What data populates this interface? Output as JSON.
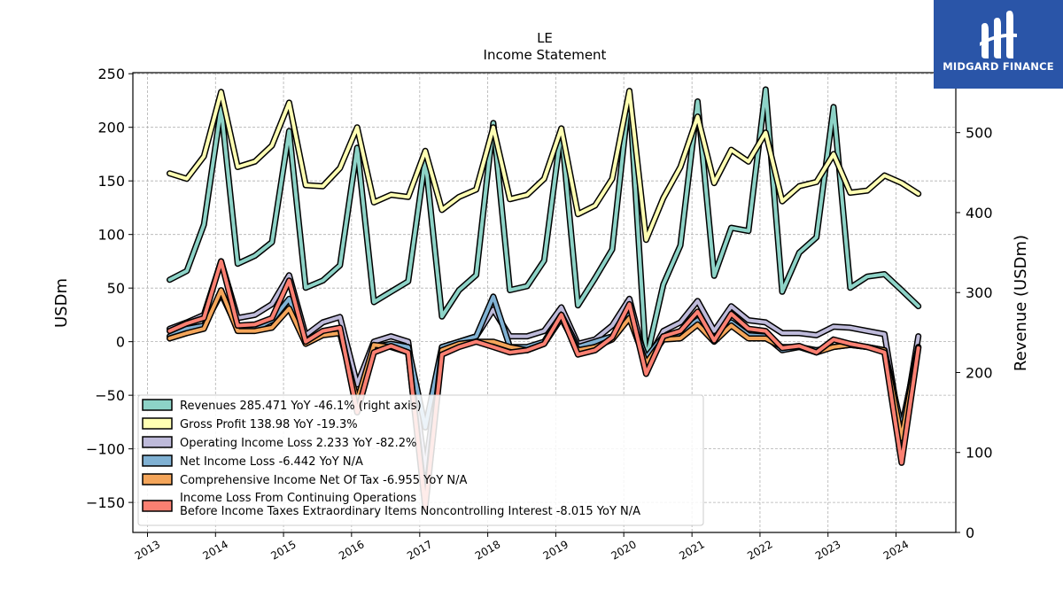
{
  "brand": {
    "name": "MIDGARD FINANCE",
    "bg": "#2a55a8"
  },
  "chart_data": {
    "type": "line",
    "title": "LE",
    "subtitle": "Income Statement",
    "ylabel": "USDm",
    "ylabel_right": "Revenue (USDm)",
    "ylim": [
      -178,
      251
    ],
    "ylim_right": [
      0,
      575
    ],
    "yticks": [
      -150,
      -100,
      -50,
      0,
      50,
      100,
      150,
      200,
      250
    ],
    "yticks_right": [
      0,
      100,
      200,
      300,
      400,
      500
    ],
    "ytick_labels": [
      "−150",
      "−100",
      "−50",
      "0",
      "50",
      "100",
      "150",
      "200",
      "250"
    ],
    "xticks": [
      "2013",
      "2014",
      "2015",
      "2016",
      "2017",
      "2018",
      "2019",
      "2020",
      "2021",
      "2022",
      "2023",
      "2024"
    ],
    "x": [
      "2013-04-30",
      "2013-07-31",
      "2013-10-31",
      "2014-01-31",
      "2014-04-30",
      "2014-07-31",
      "2014-10-31",
      "2015-01-31",
      "2015-04-30",
      "2015-07-31",
      "2015-10-31",
      "2016-01-31",
      "2016-04-30",
      "2016-07-31",
      "2016-10-31",
      "2017-01-31",
      "2017-04-30",
      "2017-07-31",
      "2017-10-31",
      "2018-01-31",
      "2018-04-30",
      "2018-07-31",
      "2018-10-31",
      "2019-01-31",
      "2019-04-30",
      "2019-07-31",
      "2019-10-31",
      "2020-01-31",
      "2020-04-30",
      "2020-07-31",
      "2020-10-31",
      "2021-01-31",
      "2021-04-30",
      "2021-07-31",
      "2021-10-31",
      "2022-01-31",
      "2022-04-30",
      "2022-07-31",
      "2022-10-31",
      "2023-01-31",
      "2023-04-30",
      "2023-07-31",
      "2023-10-31",
      "2024-01-31",
      "2024-04-30"
    ],
    "grid": true,
    "legend_position": "bottom-left",
    "series": [
      {
        "name": "Revenues  285.471 YoY -46.1% (right axis)",
        "color": "#8dd3c7",
        "axis": "right",
        "values": [
          316,
          327,
          385,
          531,
          336,
          346,
          363,
          502,
          306,
          315,
          334,
          481,
          288,
          301,
          314,
          467,
          270,
          303,
          322,
          512,
          303,
          308,
          340,
          504,
          284,
          318,
          354,
          549,
          215,
          310,
          359,
          539,
          321,
          381,
          377,
          554,
          301,
          350,
          369,
          532,
          306,
          320,
          323,
          303,
          283
        ]
      },
      {
        "name": "Gross Profit  138.98 YoY -19.3%",
        "color": "#ffffb3",
        "axis": "left",
        "values": [
          157,
          152,
          173,
          233,
          163,
          168,
          183,
          223,
          146,
          145,
          162,
          200,
          130,
          137,
          135,
          178,
          123,
          135,
          142,
          200,
          133,
          137,
          152,
          199,
          119,
          127,
          152,
          234,
          95,
          134,
          163,
          210,
          148,
          179,
          168,
          195,
          131,
          145,
          149,
          175,
          139,
          141,
          155,
          148,
          138
        ]
      },
      {
        "name": "Operating Income Loss  2.233 YoY -82.2%",
        "color": "#bebada",
        "axis": "left",
        "values": [
          12,
          18,
          25,
          75,
          22,
          25,
          35,
          62,
          6,
          18,
          23,
          -40,
          0,
          5,
          0,
          -120,
          -5,
          0,
          5,
          30,
          5,
          5,
          10,
          32,
          -2,
          2,
          15,
          40,
          -20,
          10,
          18,
          38,
          10,
          33,
          20,
          18,
          8,
          8,
          6,
          14,
          13,
          10,
          7,
          -90,
          5
        ]
      },
      {
        "name": "Net Income Loss  -6.442 YoY N/A",
        "color": "#80b1d3",
        "axis": "left",
        "values": [
          5,
          12,
          15,
          45,
          12,
          12,
          20,
          40,
          0,
          8,
          12,
          -60,
          -5,
          -2,
          -5,
          -80,
          -5,
          0,
          5,
          42,
          -5,
          -5,
          0,
          25,
          -5,
          0,
          5,
          25,
          -15,
          5,
          8,
          20,
          3,
          18,
          6,
          5,
          -8,
          -5,
          -8,
          -5,
          -3,
          -5,
          -8,
          -80,
          -5
        ]
      },
      {
        "name": "Comprehensive Income Net Of Tax  -6.955 YoY N/A",
        "color": "#f4a55a",
        "axis": "left",
        "values": [
          3,
          8,
          12,
          48,
          10,
          10,
          13,
          31,
          -2,
          6,
          8,
          -55,
          -3,
          -5,
          -10,
          -150,
          -8,
          -2,
          0,
          0,
          -5,
          -8,
          -2,
          22,
          -8,
          -5,
          2,
          22,
          -20,
          2,
          3,
          16,
          0,
          15,
          3,
          3,
          -5,
          -5,
          -10,
          -5,
          -3,
          -5,
          -8,
          -90,
          -5
        ]
      },
      {
        "name": "Income Loss From Continuing Operations\nBefore Income Taxes Extraordinary Items Noncontrolling Interest  -8.015 YoY N/A",
        "color": "#fb8072",
        "axis": "left",
        "values": [
          10,
          17,
          22,
          75,
          15,
          16,
          22,
          57,
          0,
          10,
          13,
          -66,
          -10,
          -4,
          -10,
          -155,
          -12,
          -5,
          0,
          -5,
          -10,
          -8,
          -2,
          25,
          -12,
          -8,
          4,
          35,
          -30,
          5,
          10,
          28,
          1,
          26,
          12,
          10,
          -6,
          -4,
          -10,
          2,
          -2,
          -5,
          -10,
          -113,
          -6
        ]
      }
    ],
    "legend_labels": [
      [
        "Revenues  285.471 YoY -46.1% (right axis)"
      ],
      [
        "Gross Profit  138.98 YoY -19.3%"
      ],
      [
        "Operating Income Loss  2.233 YoY -82.2%"
      ],
      [
        "Net Income Loss  -6.442 YoY N/A"
      ],
      [
        "Comprehensive Income Net Of Tax  -6.955 YoY N/A"
      ],
      [
        "Income Loss From Continuing Operations",
        "Before Income Taxes Extraordinary Items Noncontrolling Interest  -8.015 YoY N/A"
      ]
    ]
  }
}
